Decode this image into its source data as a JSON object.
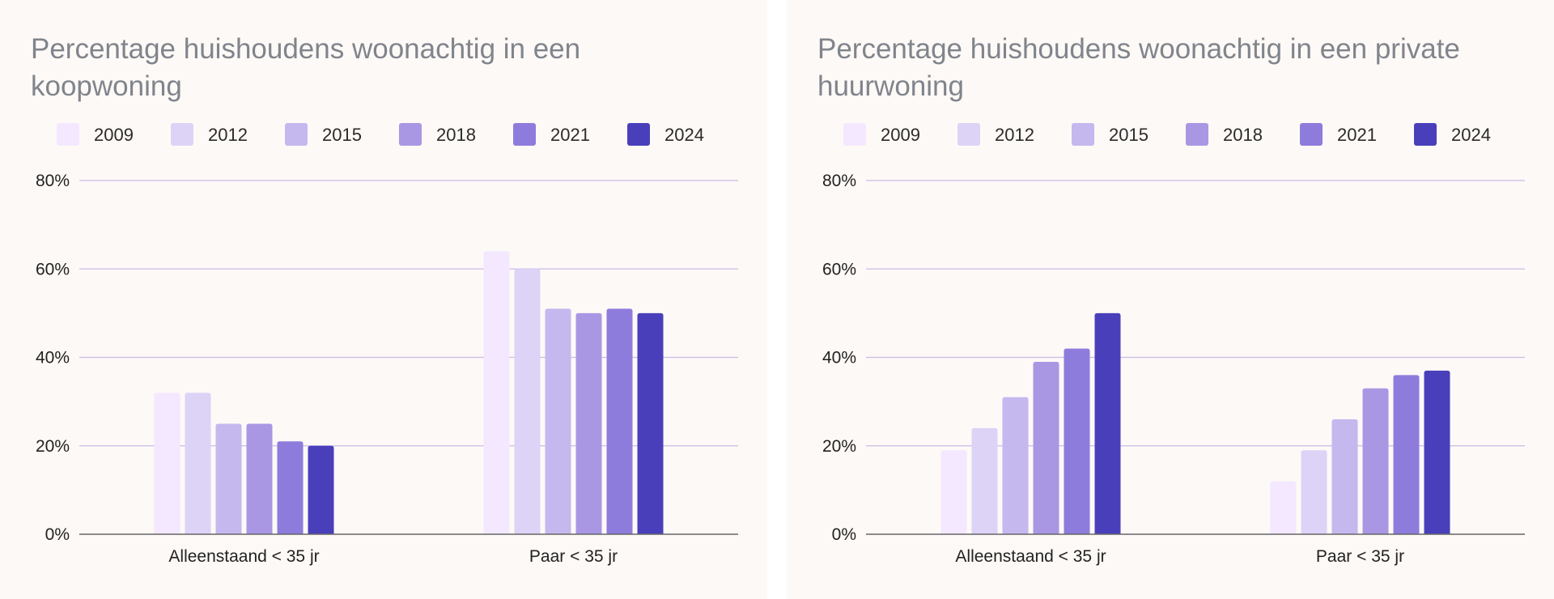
{
  "chart_data": [
    {
      "type": "bar",
      "title": "Percentage huishoudens woonachtig in een koopwoning",
      "categories": [
        "Alleenstaand < 35 jr",
        "Paar < 35 jr"
      ],
      "series": [
        {
          "name": "2009",
          "values": [
            32,
            64
          ]
        },
        {
          "name": "2012",
          "values": [
            32,
            60
          ]
        },
        {
          "name": "2015",
          "values": [
            25,
            51
          ]
        },
        {
          "name": "2018",
          "values": [
            25,
            50
          ]
        },
        {
          "name": "2021",
          "values": [
            21,
            51
          ]
        },
        {
          "name": "2024",
          "values": [
            20,
            50
          ]
        }
      ],
      "ylim": [
        0,
        80
      ],
      "yticks": [
        "0%",
        "20%",
        "40%",
        "60%",
        "80%"
      ],
      "ytick_values": [
        0,
        20,
        40,
        60,
        80
      ],
      "grid": true,
      "legend": "top-left"
    },
    {
      "type": "bar",
      "title": "Percentage huishoudens woonachtig in een private huurwoning",
      "categories": [
        "Alleenstaand < 35 jr",
        "Paar < 35 jr"
      ],
      "series": [
        {
          "name": "2009",
          "values": [
            19,
            12
          ]
        },
        {
          "name": "2012",
          "values": [
            24,
            19
          ]
        },
        {
          "name": "2015",
          "values": [
            31,
            26
          ]
        },
        {
          "name": "2018",
          "values": [
            39,
            33
          ]
        },
        {
          "name": "2021",
          "values": [
            42,
            36
          ]
        },
        {
          "name": "2024",
          "values": [
            50,
            37
          ]
        }
      ],
      "ylim": [
        0,
        80
      ],
      "yticks": [
        "0%",
        "20%",
        "40%",
        "60%",
        "80%"
      ],
      "ytick_values": [
        0,
        20,
        40,
        60,
        80
      ],
      "grid": true,
      "legend": "top-left"
    }
  ],
  "colors": {
    "series": [
      "#f3e8ff",
      "#ddd3f7",
      "#c4b8ef",
      "#a997e4",
      "#8e7cdd",
      "#4a3fbb"
    ],
    "grid": "#c8bde8",
    "axis": "#666666",
    "title": "#80848c"
  }
}
